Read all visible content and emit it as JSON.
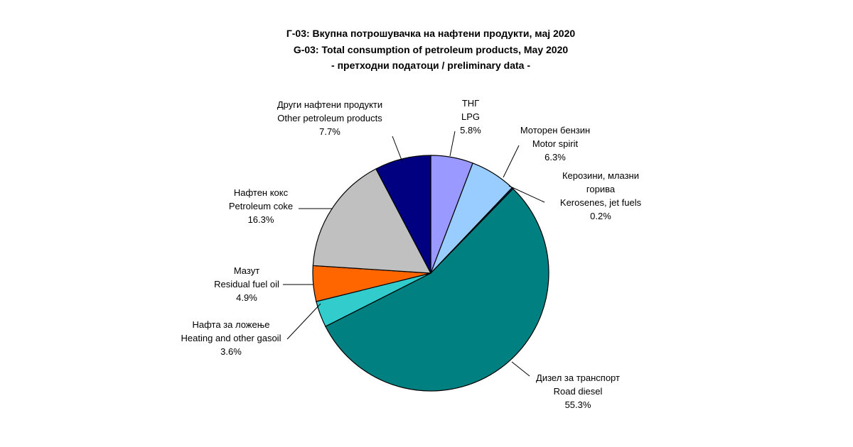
{
  "chart_data": {
    "type": "pie",
    "title": [
      "Г-03: Вкупна потрошувачка на нафтени продукти, мај 2020",
      "G-03: Total consumption of petroleum products, May 2020",
      "- претходни податоци / preliminary data -"
    ],
    "slices": [
      {
        "id": "lpg",
        "lines": [
          "ТНГ",
          "LPG"
        ],
        "value": 5.8,
        "label": "5.8%",
        "color": "#9999ff"
      },
      {
        "id": "motor-spirit",
        "lines": [
          "Моторен бензин",
          "Motor spirit"
        ],
        "value": 6.3,
        "label": "6.3%",
        "color": "#99ccff"
      },
      {
        "id": "kerosenes",
        "lines": [
          "Керозини, млазни",
          "горива",
          "Kerosenes, jet fuels"
        ],
        "value": 0.2,
        "label": "0.2%",
        "color": "#003366"
      },
      {
        "id": "road-diesel",
        "lines": [
          "Дизел за транспорт",
          "Road diesel"
        ],
        "value": 55.3,
        "label": "55.3%",
        "color": "#008080"
      },
      {
        "id": "heating-gasoil",
        "lines": [
          "Нафта за ложење",
          "Heating and other gasoil"
        ],
        "value": 3.6,
        "label": "3.6%",
        "color": "#33cccc"
      },
      {
        "id": "residual-fuel-oil",
        "lines": [
          "Мазут",
          "Residual fuel oil"
        ],
        "value": 4.9,
        "label": "4.9%",
        "color": "#ff6600"
      },
      {
        "id": "petroleum-coke",
        "lines": [
          "Нафтен кокс",
          "Petroleum coke"
        ],
        "value": 16.3,
        "label": "16.3%",
        "color": "#c0c0c0"
      },
      {
        "id": "other-products",
        "lines": [
          "Други нафтени продукти",
          "Other petroleum products"
        ],
        "value": 7.7,
        "label": "7.7%",
        "color": "#000080"
      }
    ]
  }
}
